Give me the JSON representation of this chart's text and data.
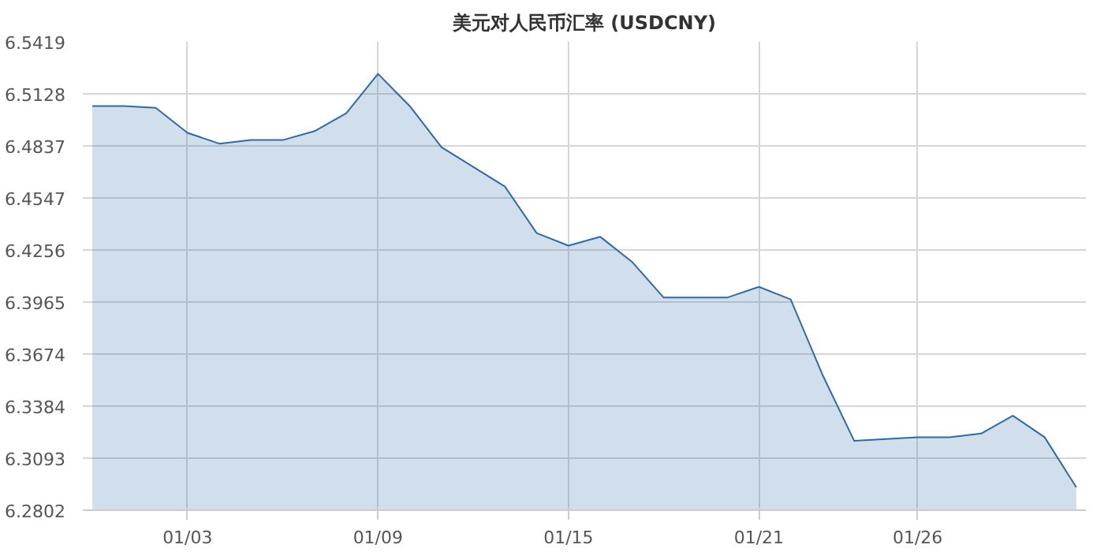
{
  "chart_data": {
    "type": "area",
    "title": "美元对人民币汇率 (USDCNY)",
    "categories": [
      null,
      null,
      null,
      "01/03",
      null,
      null,
      null,
      null,
      null,
      "01/09",
      null,
      null,
      null,
      null,
      null,
      "01/15",
      null,
      null,
      null,
      null,
      null,
      "01/21",
      null,
      null,
      null,
      null,
      "01/26",
      null,
      null,
      null,
      null,
      null
    ],
    "series": [
      {
        "color": "#2e6aa8",
        "values": [
          6.506,
          6.506,
          6.505,
          6.491,
          6.485,
          6.487,
          6.487,
          6.492,
          6.502,
          6.524,
          6.506,
          6.483,
          6.472,
          6.461,
          6.435,
          6.428,
          6.433,
          6.419,
          6.399,
          6.399,
          6.399,
          6.405,
          6.398,
          6.356,
          6.319,
          6.32,
          6.321,
          6.321,
          6.323,
          6.333,
          6.321,
          6.293
        ]
      }
    ],
    "ylim": [
      6.2802,
      6.5419
    ],
    "yticks": [
      6.2802,
      6.3093,
      6.3384,
      6.3674,
      6.3965,
      6.4256,
      6.4547,
      6.4837,
      6.5128,
      6.5419
    ],
    "grid": true,
    "marker": "none",
    "line_style": "solid"
  }
}
